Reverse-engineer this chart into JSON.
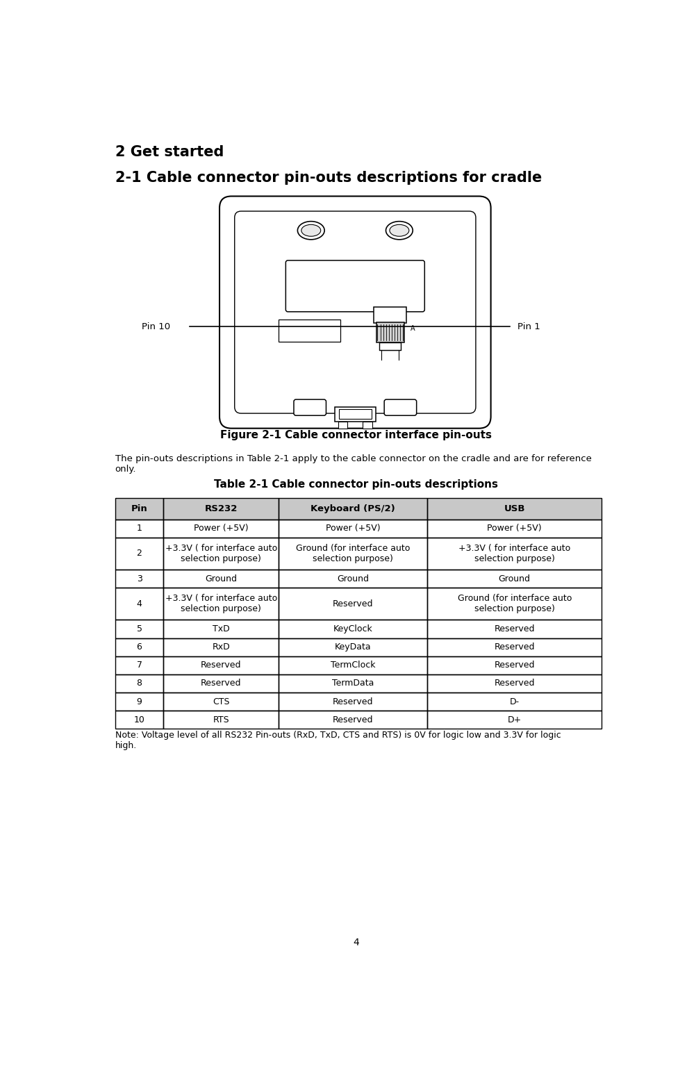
{
  "title1": "2 Get started",
  "title2": "2-1 Cable connector pin-outs descriptions for cradle",
  "figure_caption": "Figure 2-1 Cable connector interface pin-outs",
  "body_text": "The pin-outs descriptions in Table 2-1 apply to the cable connector on the cradle and are for reference\nonly.",
  "table_title": "Table 2-1 Cable connector pin-outs descriptions",
  "table_headers": [
    "Pin",
    "RS232",
    "Keyboard (PS/2)",
    "USB"
  ],
  "table_data": [
    [
      "1",
      "Power (+5V)",
      "Power (+5V)",
      "Power (+5V)"
    ],
    [
      "2",
      "+3.3V ( for interface auto\nselection purpose)",
      "Ground (for interface auto\nselection purpose)",
      "+3.3V ( for interface auto\nselection purpose)"
    ],
    [
      "3",
      "Ground",
      "Ground",
      "Ground"
    ],
    [
      "4",
      "+3.3V ( for interface auto\nselection purpose)",
      "Reserved",
      "Ground (for interface auto\nselection purpose)"
    ],
    [
      "5",
      "TxD",
      "KeyClock",
      "Reserved"
    ],
    [
      "6",
      "RxD",
      "KeyData",
      "Reserved"
    ],
    [
      "7",
      "Reserved",
      "TermClock",
      "Reserved"
    ],
    [
      "8",
      "Reserved",
      "TermData",
      "Reserved"
    ],
    [
      "9",
      "CTS",
      "Reserved",
      "D-"
    ],
    [
      "10",
      "RTS",
      "Reserved",
      "D+"
    ]
  ],
  "note_text": "Note: Voltage level of all RS232 Pin-outs (RxD, TxD, CTS and RTS) is 0V for logic low and 3.3V for logic\nhigh.",
  "page_number": "4",
  "header_bg": "#c8c8c8",
  "table_border": "#000000",
  "bg_color": "#ffffff",
  "text_color": "#000000",
  "pin10_label": "Pin 10",
  "pin1_label": "Pin 1"
}
